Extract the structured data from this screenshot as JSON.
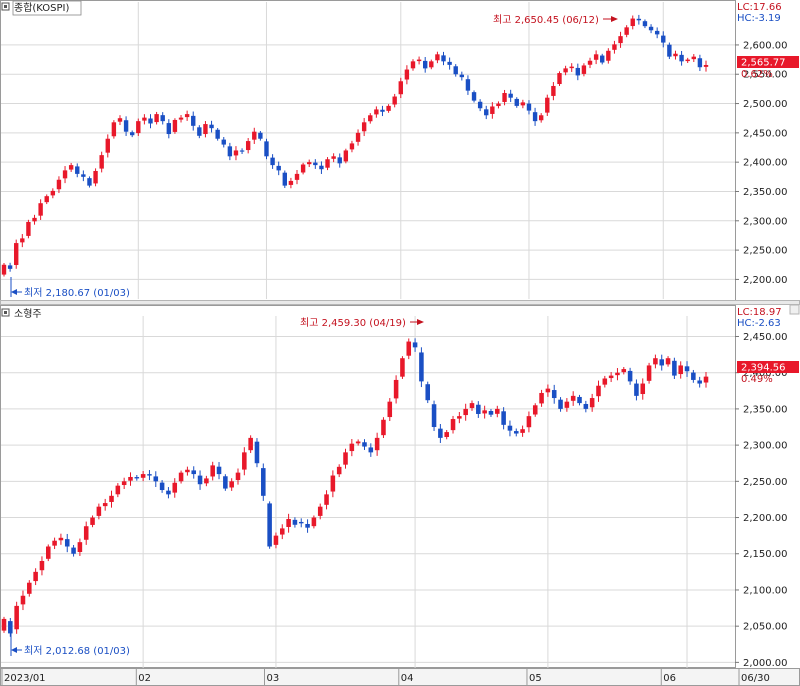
{
  "colors": {
    "up": "#e8182a",
    "down": "#1a4fc4",
    "grid": "#d9d9d9",
    "tag_bg": "#e8182a"
  },
  "x_axis": {
    "labels": [
      "2023/01",
      "02",
      "03",
      "04",
      "05",
      "06",
      "06/30"
    ],
    "label_dates": [
      "2023-01-02",
      "2023-02-01",
      "2023-03-02",
      "2023-04-03",
      "2023-05-02",
      "2023-06-01",
      "2023-06-30"
    ]
  },
  "panels": [
    {
      "id": "kospi",
      "name": "종합(KOSPI)",
      "lc_label": "LC:17.66",
      "hc_label": "HC:-3.19",
      "last_value_label": "2,565.77",
      "change_label": "0.62%",
      "high_label": "최고 2,650.45 (06/12)",
      "low_label": "최저 2,180.67 (01/03)"
    },
    {
      "id": "small_cap",
      "name": "소형주",
      "lc_label": "LC:18.97",
      "hc_label": "HC:-2.63",
      "last_value_label": "2,394.56",
      "change_label": "0.49%",
      "high_label": "최고 2,459.30 (04/19)",
      "low_label": "최저 2,012.68 (01/03)"
    }
  ],
  "chart_data": [
    {
      "type": "candlestick",
      "title": "종합(KOSPI)",
      "period": [
        "2023-01-02",
        "2023-06-30"
      ],
      "y_ticks": [
        2200,
        2250,
        2300,
        2350,
        2400,
        2450,
        2500,
        2550,
        2600
      ],
      "ylim": [
        2170,
        2663
      ],
      "last_close": 2565.77,
      "change_pct": 0.62,
      "high": {
        "value": 2650.45,
        "date": "06/12"
      },
      "low": {
        "value": 2180.67,
        "date": "01/03"
      },
      "close": [
        2225,
        2218,
        2262,
        2270,
        2298,
        2305,
        2330,
        2342,
        2351,
        2370,
        2386,
        2395,
        2380,
        2375,
        2360,
        2385,
        2412,
        2440,
        2468,
        2475,
        2452,
        2446,
        2470,
        2476,
        2466,
        2482,
        2470,
        2448,
        2472,
        2476,
        2482,
        2462,
        2445,
        2465,
        2458,
        2440,
        2430,
        2410,
        2420,
        2418,
        2436,
        2452,
        2440,
        2410,
        2395,
        2386,
        2360,
        2368,
        2380,
        2396,
        2400,
        2395,
        2388,
        2405,
        2410,
        2398,
        2420,
        2432,
        2450,
        2468,
        2480,
        2490,
        2486,
        2496,
        2512,
        2538,
        2558,
        2572,
        2575,
        2560,
        2572,
        2584,
        2572,
        2566,
        2550,
        2545,
        2522,
        2505,
        2492,
        2480,
        2495,
        2500,
        2518,
        2510,
        2496,
        2502,
        2488,
        2470,
        2480,
        2510,
        2530,
        2552,
        2560,
        2563,
        2548,
        2565,
        2573,
        2584,
        2570,
        2590,
        2601,
        2615,
        2630,
        2645,
        2642,
        2632,
        2625,
        2618,
        2604,
        2580,
        2585,
        2572,
        2575,
        2580,
        2562,
        2565.77
      ]
    },
    {
      "type": "candlestick",
      "title": "소형주",
      "period": [
        "2023-01-02",
        "2023-06-30"
      ],
      "y_ticks": [
        2000,
        2050,
        2100,
        2150,
        2200,
        2250,
        2300,
        2350,
        2400,
        2450
      ],
      "ylim": [
        1995,
        2470
      ],
      "last_close": 2394.56,
      "change_pct": 0.49,
      "high": {
        "value": 2459.3,
        "date": "04/19"
      },
      "low": {
        "value": 2012.68,
        "date": "01/03"
      },
      "close": [
        2060,
        2040,
        2078,
        2092,
        2110,
        2125,
        2140,
        2160,
        2168,
        2172,
        2160,
        2150,
        2166,
        2188,
        2200,
        2215,
        2220,
        2230,
        2244,
        2250,
        2256,
        2254,
        2260,
        2258,
        2250,
        2238,
        2232,
        2248,
        2262,
        2266,
        2260,
        2246,
        2254,
        2272,
        2260,
        2240,
        2250,
        2262,
        2290,
        2310,
        2275,
        2230,
        2160,
        2175,
        2185,
        2198,
        2190,
        2192,
        2186,
        2200,
        2215,
        2232,
        2258,
        2270,
        2290,
        2302,
        2305,
        2298,
        2290,
        2310,
        2335,
        2360,
        2390,
        2420,
        2443,
        2435,
        2388,
        2362,
        2325,
        2310,
        2318,
        2336,
        2340,
        2350,
        2358,
        2343,
        2348,
        2342,
        2350,
        2328,
        2320,
        2316,
        2322,
        2340,
        2355,
        2372,
        2378,
        2365,
        2350,
        2360,
        2368,
        2358,
        2350,
        2365,
        2382,
        2392,
        2396,
        2400,
        2405,
        2388,
        2368,
        2385,
        2410,
        2420,
        2410,
        2420,
        2396,
        2410,
        2402,
        2390,
        2385,
        2394.56
      ]
    }
  ]
}
